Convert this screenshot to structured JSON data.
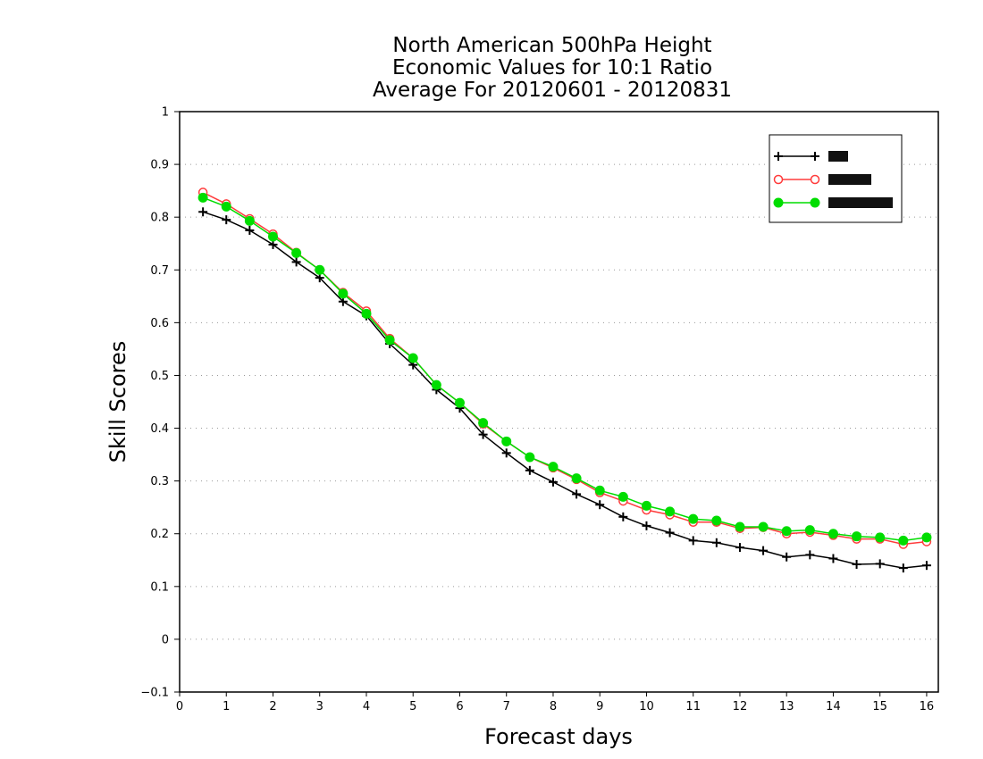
{
  "chart_data": {
    "type": "line",
    "title_lines": [
      "North American 500hPa Height",
      "Economic Values for 10:1 Ratio",
      "Average For 20120601 - 20120831"
    ],
    "xlabel": "Forecast days",
    "ylabel": "Skill Scores",
    "xlim": [
      0,
      16.25
    ],
    "ylim": [
      -0.1,
      1
    ],
    "x_ticks": [
      "0",
      "1",
      "2",
      "3",
      "4",
      "5",
      "6",
      "7",
      "8",
      "9",
      "10",
      "11",
      "12",
      "13",
      "14",
      "15",
      "16"
    ],
    "y_ticks": [
      "-0.1",
      "0",
      "0.1",
      "0.2",
      "0.3",
      "0.4",
      "0.5",
      "0.6",
      "0.7",
      "0.8",
      "0.9",
      "1"
    ],
    "grid": "horizontal-dotted",
    "legend_position": "top-right",
    "x": [
      0.5,
      1,
      1.5,
      2,
      2.5,
      3,
      3.5,
      4,
      4.5,
      5,
      5.5,
      6,
      6.5,
      7,
      7.5,
      8,
      8.5,
      9,
      9.5,
      10,
      10.5,
      11,
      11.5,
      12,
      12.5,
      13,
      13.5,
      14,
      14.5,
      15,
      15.5,
      16
    ],
    "series": [
      {
        "marker": "plus",
        "color": "#000000",
        "values": [
          0.81,
          0.795,
          0.775,
          0.748,
          0.715,
          0.685,
          0.64,
          0.613,
          0.56,
          0.52,
          0.473,
          0.438,
          0.388,
          0.353,
          0.32,
          0.298,
          0.275,
          0.255,
          0.232,
          0.215,
          0.202,
          0.187,
          0.183,
          0.174,
          0.168,
          0.156,
          0.16,
          0.153,
          0.142,
          0.143,
          0.135,
          0.14
        ]
      },
      {
        "marker": "open-circle",
        "color": "#ff3b3b",
        "values": [
          0.847,
          0.825,
          0.797,
          0.768,
          0.733,
          0.7,
          0.657,
          0.622,
          0.57,
          0.533,
          0.482,
          0.448,
          0.408,
          0.375,
          0.345,
          0.325,
          0.303,
          0.278,
          0.262,
          0.245,
          0.236,
          0.222,
          0.222,
          0.21,
          0.212,
          0.2,
          0.203,
          0.197,
          0.19,
          0.19,
          0.18,
          0.185
        ]
      },
      {
        "marker": "filled-circle",
        "color": "#00dd00",
        "values": [
          0.837,
          0.82,
          0.793,
          0.763,
          0.732,
          0.7,
          0.655,
          0.617,
          0.567,
          0.533,
          0.482,
          0.448,
          0.41,
          0.375,
          0.345,
          0.327,
          0.305,
          0.282,
          0.27,
          0.253,
          0.242,
          0.228,
          0.225,
          0.213,
          0.213,
          0.205,
          0.207,
          0.2,
          0.195,
          0.193,
          0.187,
          0.193
        ]
      }
    ]
  }
}
